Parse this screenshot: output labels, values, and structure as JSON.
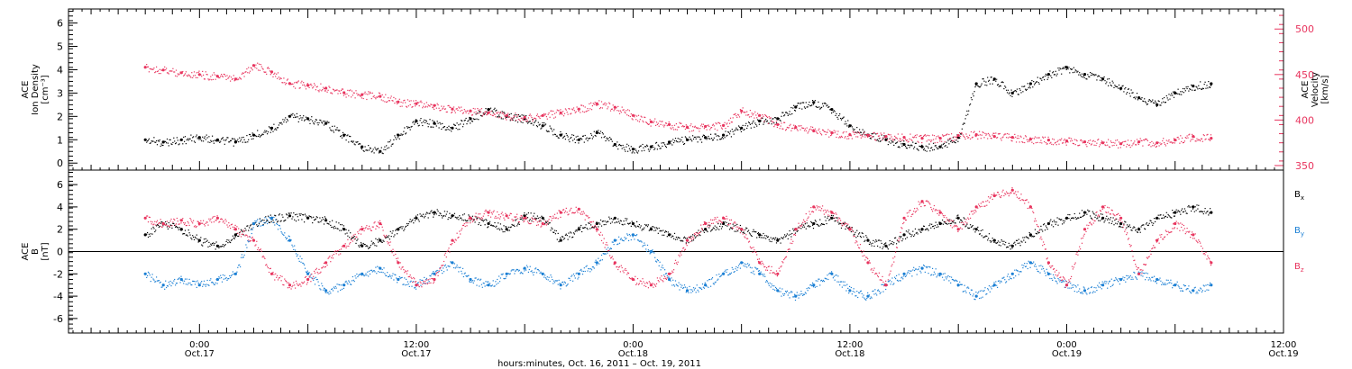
{
  "chart_data": [
    {
      "type": "scatter",
      "panel": "top",
      "ylabel_lines": [
        "ACE",
        "Ion Density",
        "[cm⁻³]"
      ],
      "ylim": [
        -0.3,
        6.6
      ],
      "y_ticks": [
        "0",
        "1",
        "2",
        "3",
        "4",
        "5",
        "6"
      ],
      "y2label_lines": [
        "ACE",
        "Velocity",
        "[km/s]"
      ],
      "y2lim": [
        345,
        522
      ],
      "y2_ticks": [
        "350",
        "400",
        "450",
        "500"
      ],
      "series": [
        {
          "axis": "left",
          "color": "#000000",
          "x": [
            0,
            2,
            4,
            6,
            8,
            10,
            12,
            14,
            16,
            18,
            20,
            22,
            24,
            26,
            28,
            30,
            32,
            34,
            36,
            38,
            40,
            42,
            44,
            46,
            48,
            50,
            52,
            54,
            56,
            58,
            60,
            62,
            64,
            66,
            68,
            70,
            72,
            74,
            76,
            78,
            80,
            82,
            84,
            86,
            88,
            90,
            92,
            94,
            96,
            98,
            100,
            102,
            104,
            106,
            108,
            110,
            112,
            114,
            116,
            118
          ],
          "y": [
            1.0,
            0.9,
            1.0,
            1.1,
            1.0,
            0.9,
            1.2,
            1.5,
            2.0,
            1.9,
            1.7,
            1.2,
            0.7,
            0.5,
            1.2,
            1.8,
            1.7,
            1.5,
            1.9,
            2.3,
            2.0,
            1.9,
            1.6,
            1.2,
            1.0,
            1.3,
            0.8,
            0.6,
            0.7,
            0.9,
            1.0,
            1.1,
            1.2,
            1.5,
            1.8,
            1.9,
            2.4,
            2.6,
            2.3,
            1.6,
            1.2,
            1.0,
            0.8,
            0.7,
            0.7,
            1.1,
            3.4,
            3.6,
            3.0,
            3.4,
            3.8,
            4.1,
            3.8,
            3.6,
            3.2,
            2.8,
            2.5,
            3.0,
            3.3,
            3.4
          ]
        },
        {
          "axis": "right",
          "color": "#e8345e",
          "x": [
            0,
            2,
            4,
            6,
            8,
            10,
            12,
            14,
            16,
            18,
            20,
            22,
            24,
            26,
            28,
            30,
            32,
            34,
            36,
            38,
            40,
            42,
            44,
            46,
            48,
            50,
            52,
            54,
            56,
            58,
            60,
            62,
            64,
            66,
            68,
            70,
            72,
            74,
            76,
            78,
            80,
            82,
            84,
            86,
            88,
            90,
            92,
            94,
            96,
            98,
            100,
            102,
            104,
            106,
            108,
            110,
            112,
            114,
            116,
            118
          ],
          "y": [
            458,
            455,
            452,
            450,
            448,
            445,
            460,
            453,
            440,
            438,
            435,
            430,
            428,
            426,
            420,
            418,
            416,
            412,
            410,
            408,
            405,
            403,
            405,
            408,
            412,
            418,
            414,
            405,
            398,
            395,
            392,
            393,
            394,
            410,
            405,
            395,
            392,
            388,
            386,
            384,
            383,
            382,
            381,
            380,
            380,
            383,
            384,
            382,
            381,
            379,
            378,
            377,
            376,
            375,
            374,
            376,
            375,
            378,
            382,
            380
          ]
        }
      ]
    },
    {
      "type": "scatter",
      "panel": "bottom",
      "ylabel_lines": [
        "ACE",
        "B",
        "[nT]"
      ],
      "ylim": [
        -7.3,
        7.3
      ],
      "y_ticks": [
        "-6",
        "-4",
        "-2",
        "0",
        "2",
        "4",
        "6"
      ],
      "legend_position": "right",
      "legend": [
        {
          "text": "B",
          "sub": "x",
          "color": "#000000"
        },
        {
          "text": "B",
          "sub": "y",
          "color": "#1a7fd4"
        },
        {
          "text": "B",
          "sub": "z",
          "color": "#e8345e"
        }
      ],
      "series": [
        {
          "color": "#000000",
          "x": [
            0,
            2,
            4,
            6,
            8,
            10,
            12,
            14,
            16,
            18,
            20,
            22,
            24,
            26,
            28,
            30,
            32,
            34,
            36,
            38,
            40,
            42,
            44,
            46,
            48,
            50,
            52,
            54,
            56,
            58,
            60,
            62,
            64,
            66,
            68,
            70,
            72,
            74,
            76,
            78,
            80,
            82,
            84,
            86,
            88,
            90,
            92,
            94,
            96,
            98,
            100,
            102,
            104,
            106,
            108,
            110,
            112,
            114,
            116,
            118
          ],
          "y": [
            1.5,
            2.5,
            2.0,
            1.0,
            0.5,
            1.5,
            2.5,
            3.0,
            3.2,
            3.0,
            2.8,
            2.0,
            0.5,
            1.0,
            2.0,
            3.0,
            3.5,
            3.2,
            3.0,
            2.5,
            2.0,
            3.2,
            3.0,
            1.0,
            2.0,
            2.5,
            3.0,
            2.5,
            2.0,
            1.5,
            1.0,
            2.0,
            2.5,
            2.0,
            1.5,
            1.0,
            2.0,
            2.5,
            3.0,
            2.0,
            1.0,
            0.5,
            1.5,
            2.0,
            2.5,
            3.0,
            2.0,
            1.0,
            0.5,
            1.5,
            2.5,
            3.0,
            3.5,
            3.0,
            2.5,
            2.0,
            3.0,
            3.5,
            4.0,
            3.5
          ]
        },
        {
          "color": "#1a7fd4",
          "x": [
            0,
            2,
            4,
            6,
            8,
            10,
            12,
            14,
            16,
            18,
            20,
            22,
            24,
            26,
            28,
            30,
            32,
            34,
            36,
            38,
            40,
            42,
            44,
            46,
            48,
            50,
            52,
            54,
            56,
            58,
            60,
            62,
            64,
            66,
            68,
            70,
            72,
            74,
            76,
            78,
            80,
            82,
            84,
            86,
            88,
            90,
            92,
            94,
            96,
            98,
            100,
            102,
            104,
            106,
            108,
            110,
            112,
            114,
            116,
            118
          ],
          "y": [
            -2.0,
            -3.0,
            -2.5,
            -3.0,
            -2.5,
            -2.0,
            2.5,
            3.0,
            1.0,
            -2.0,
            -3.5,
            -3.0,
            -2.0,
            -1.5,
            -2.5,
            -3.0,
            -2.0,
            -1.0,
            -2.5,
            -3.0,
            -2.0,
            -1.5,
            -2.0,
            -3.0,
            -2.0,
            -1.0,
            1.0,
            1.5,
            0.0,
            -2.5,
            -3.5,
            -3.0,
            -2.0,
            -1.0,
            -2.0,
            -3.5,
            -4.0,
            -3.0,
            -2.0,
            -3.5,
            -4.0,
            -3.0,
            -2.0,
            -1.5,
            -2.0,
            -3.0,
            -4.0,
            -3.0,
            -2.0,
            -1.0,
            -2.0,
            -3.0,
            -3.5,
            -3.0,
            -2.5,
            -2.0,
            -2.5,
            -3.0,
            -3.5,
            -3.0
          ]
        },
        {
          "color": "#e8345e",
          "x": [
            0,
            2,
            4,
            6,
            8,
            10,
            12,
            14,
            16,
            18,
            20,
            22,
            24,
            26,
            28,
            30,
            32,
            34,
            36,
            38,
            40,
            42,
            44,
            46,
            48,
            50,
            52,
            54,
            56,
            58,
            60,
            62,
            64,
            66,
            68,
            70,
            72,
            74,
            76,
            78,
            80,
            82,
            84,
            86,
            88,
            90,
            92,
            94,
            96,
            98,
            100,
            102,
            104,
            106,
            108,
            110,
            112,
            114,
            116,
            118
          ],
          "y": [
            3.0,
            2.5,
            2.8,
            2.5,
            3.0,
            2.0,
            1.0,
            -2.0,
            -3.0,
            -2.5,
            -1.0,
            0.5,
            2.0,
            2.5,
            -1.0,
            -3.0,
            -2.5,
            1.0,
            3.0,
            3.5,
            3.2,
            3.0,
            2.5,
            3.5,
            3.8,
            2.0,
            -1.0,
            -2.5,
            -3.0,
            -2.0,
            1.0,
            2.5,
            3.0,
            2.0,
            -1.0,
            -2.0,
            2.0,
            4.0,
            3.5,
            2.0,
            -1.0,
            -3.0,
            3.0,
            4.5,
            3.5,
            2.0,
            4.0,
            5.0,
            5.5,
            4.0,
            -1.0,
            -3.0,
            2.0,
            4.0,
            3.0,
            -2.0,
            1.0,
            2.5,
            1.5,
            -1.0
          ]
        }
      ]
    }
  ],
  "x_axis": {
    "xlim": [
      -8.5,
      126
    ],
    "ticks": [
      {
        "x": 6,
        "time": "0:00",
        "date": "Oct.17"
      },
      {
        "x": 30,
        "time": "12:00",
        "date": "Oct.17"
      },
      {
        "x": 54,
        "time": "0:00",
        "date": "Oct.18"
      },
      {
        "x": 78,
        "time": "12:00",
        "date": "Oct.18"
      },
      {
        "x": 102,
        "time": "0:00",
        "date": "Oct.19"
      },
      {
        "x": 126,
        "time": "12:00",
        "date": "Oct.19"
      }
    ],
    "xlabel": "hours:minutes, Oct. 16, 2011 – Oct. 19, 2011"
  }
}
